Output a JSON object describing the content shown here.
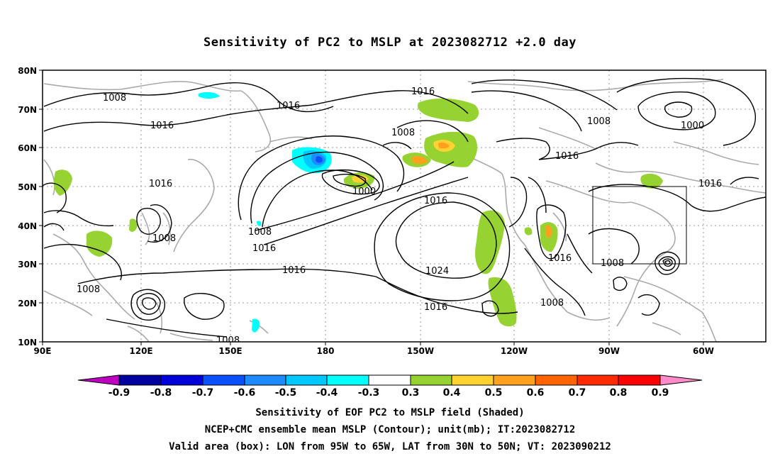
{
  "title": "Sensitivity of PC2 to MSLP at 2023082712 +2.0 day",
  "map": {
    "lat_ticks": [
      "80N",
      "70N",
      "60N",
      "50N",
      "40N",
      "30N",
      "20N",
      "10N"
    ],
    "lon_ticks": [
      "90E",
      "120E",
      "150E",
      "180",
      "150W",
      "120W",
      "90W",
      "60W"
    ],
    "lat_range": [
      10,
      80
    ],
    "lon_range_east": [
      90,
      310
    ],
    "grid": "dotted",
    "projection": "cylindrical equidistant"
  },
  "contours": {
    "unit": "mb",
    "labels": [
      {
        "text": "1008"
      },
      {
        "text": "1016"
      },
      {
        "text": "1016"
      },
      {
        "text": "1008"
      },
      {
        "text": "1016"
      },
      {
        "text": "1008"
      },
      {
        "text": "1008"
      },
      {
        "text": "1016"
      },
      {
        "text": "1008"
      },
      {
        "text": "1016"
      },
      {
        "text": "1016"
      },
      {
        "text": "1000"
      },
      {
        "text": "1016"
      },
      {
        "text": "1024"
      },
      {
        "text": "1016"
      },
      {
        "text": "1008"
      },
      {
        "text": "1008"
      },
      {
        "text": "1016"
      },
      {
        "text": "1008"
      },
      {
        "text": "1000"
      },
      {
        "text": "1016"
      },
      {
        "text": "1016"
      }
    ]
  },
  "valid_box": {
    "lon": [
      "95W",
      "65W"
    ],
    "lat": [
      "30N",
      "50N"
    ]
  },
  "colorbar": {
    "labels": [
      "-0.9",
      "-0.8",
      "-0.7",
      "-0.6",
      "-0.5",
      "-0.4",
      "-0.3",
      "0.3",
      "0.4",
      "0.5",
      "0.6",
      "0.7",
      "0.8",
      "0.9"
    ],
    "colors": [
      "#c000c0",
      "#0000a0",
      "#0000d8",
      "#0a50ff",
      "#1e8cff",
      "#00c8ff",
      "#00ffff",
      "#ffffff",
      "#96d232",
      "#ffd232",
      "#ffa01e",
      "#ff6400",
      "#ff2a00",
      "#ff0000",
      "#ff8cc8"
    ]
  },
  "captions": {
    "line1": "Sensitivity of EOF PC2 to MSLP field (Shaded)",
    "line2": "NCEP+CMC ensemble mean MSLP (Contour); unit(mb); IT:2023082712",
    "line3": "Valid area (box): LON from 95W to 65W, LAT from 30N to 50N; VT: 2023090212"
  }
}
